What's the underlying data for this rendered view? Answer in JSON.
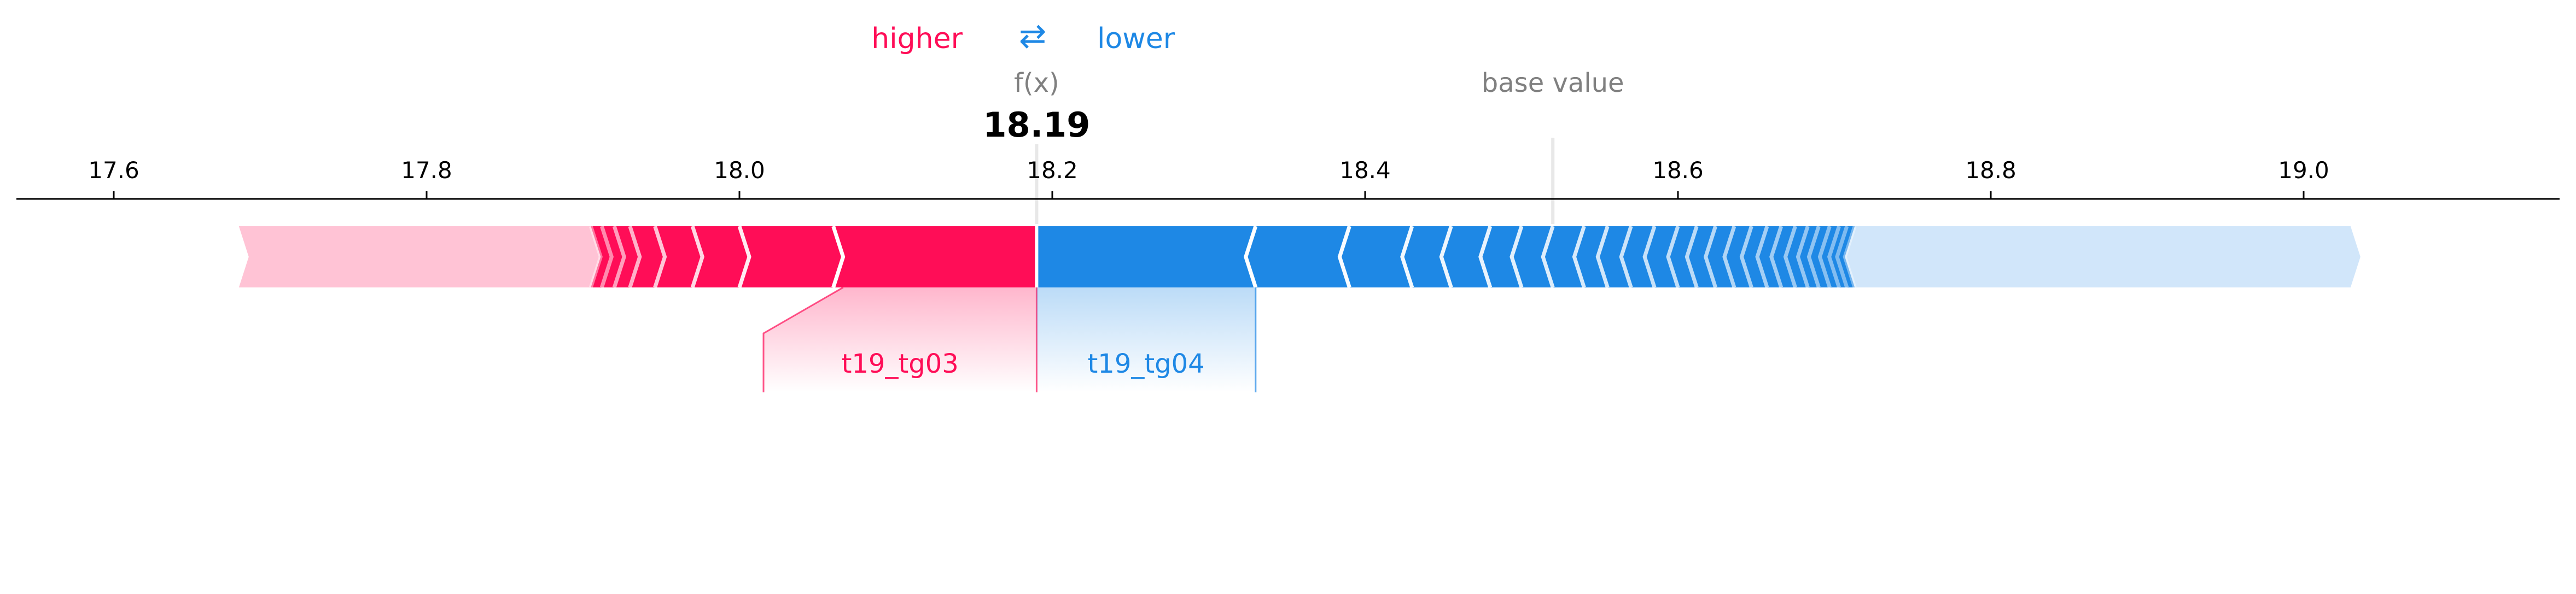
{
  "chart_data": {
    "type": "force",
    "legend": {
      "higher": "higher",
      "lower": "lower",
      "arrow": "⇄"
    },
    "output_label": "f(x)",
    "output_value": 18.19,
    "output_text": "18.19",
    "base_value_label": "base value",
    "base_value": 18.52,
    "xlim": [
      17.54,
      19.16
    ],
    "x_ticks": [
      17.6,
      17.8,
      18.0,
      18.2,
      18.4,
      18.6,
      18.8,
      19.0
    ],
    "x_tick_labels": [
      "17.6",
      "17.8",
      "18.0",
      "18.2",
      "18.4",
      "18.6",
      "18.8",
      "19.0"
    ],
    "higher_range": [
      17.68,
      18.19
    ],
    "lower_range": [
      18.19,
      19.03
    ],
    "higher_features": [
      {
        "name": "t19_tg03",
        "start": 18.06,
        "end": 18.19
      }
    ],
    "lower_features": [
      {
        "name": "t19_tg04",
        "start": 18.19,
        "end": 18.33
      }
    ],
    "higher_chevrons": [
      18.06,
      18.0,
      17.97,
      17.946,
      17.93,
      17.92,
      17.912,
      17.905
    ],
    "lower_chevrons": [
      18.33,
      18.39,
      18.43,
      18.455,
      18.48,
      18.5,
      18.52,
      18.54,
      18.555,
      18.57,
      18.585,
      18.6,
      18.612,
      18.624,
      18.636,
      18.647,
      18.657,
      18.666,
      18.675,
      18.683,
      18.69,
      18.697,
      18.703,
      18.708,
      18.713
    ],
    "colors": {
      "higher": "#ff0d57",
      "higher_light": "#ffc3d5",
      "lower": "#1e88e5",
      "lower_light": "#d1e6fa",
      "base_line": "#e8e8e8",
      "label_gray": "#808080"
    }
  }
}
